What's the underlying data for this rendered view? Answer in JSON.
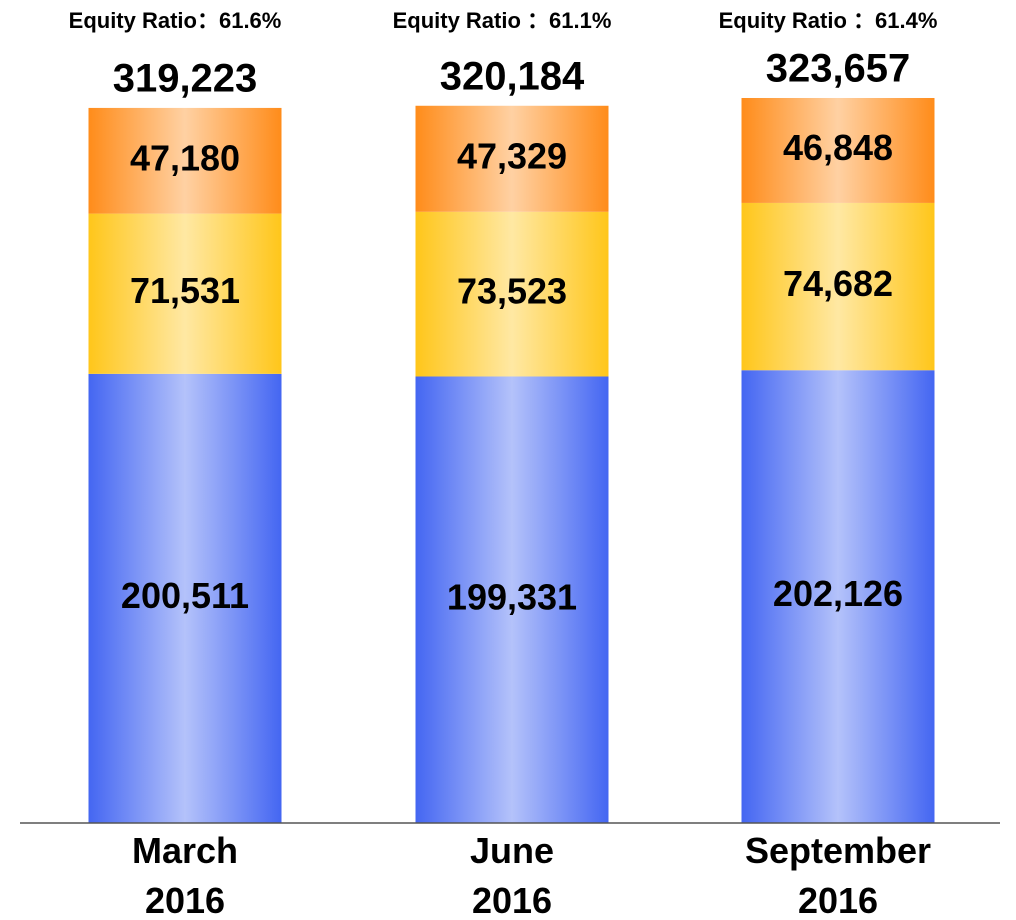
{
  "chart_data": {
    "type": "stacked_bar",
    "categories": [
      "March 2016",
      "June 2016",
      "September 2016"
    ],
    "series": [
      {
        "color": "#4466f2",
        "values": [
          200511,
          199331,
          202126
        ],
        "value_labels": [
          "200,511",
          "199,331",
          "202,126"
        ]
      },
      {
        "color": "#ffc61a",
        "values": [
          71531,
          73523,
          74682
        ],
        "value_labels": [
          "71,531",
          "73,523",
          "74,682"
        ]
      },
      {
        "color": "#ff8c1a",
        "values": [
          47180,
          47329,
          46848
        ],
        "value_labels": [
          "47,180",
          "47,329",
          "46,848"
        ]
      }
    ],
    "totals": [
      319223,
      320184,
      323657
    ],
    "total_labels": [
      "319,223",
      "320,184",
      "323,657"
    ],
    "annotations": [
      "Equity Ratio：61.6%",
      "Equity Ratio ：61.1%",
      "Equity Ratio ：61.4%"
    ],
    "ylim": [
      0,
      367400
    ]
  }
}
